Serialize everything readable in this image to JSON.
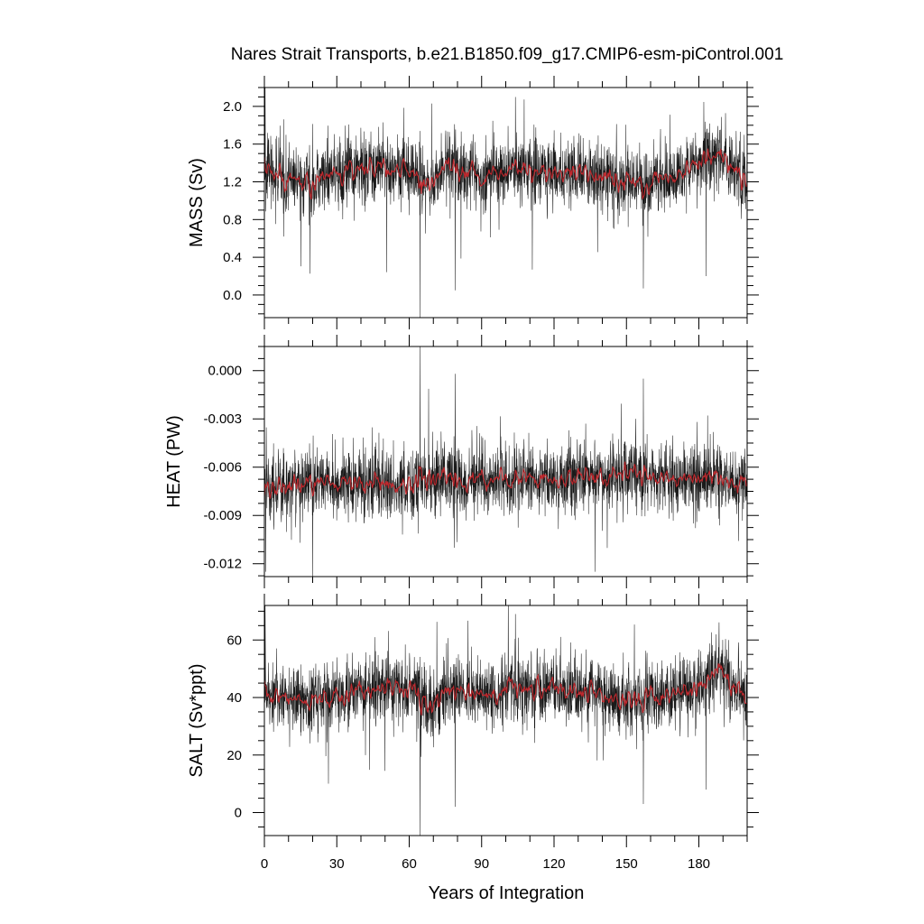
{
  "chart_data": {
    "title": "Nares Strait Transports, b.e21.B1850.f09_g17.CMIP6-esm-piControl.001",
    "xlabel": "Years of Integration",
    "xlim": [
      0,
      200
    ],
    "xticks": [
      0,
      30,
      60,
      90,
      120,
      150,
      180
    ],
    "xtick_labels": [
      "0",
      "30",
      "60",
      "90",
      "120",
      "150",
      "180"
    ],
    "panels": [
      {
        "type": "line",
        "ylabel": "MASS (Sv)",
        "ylim": [
          -0.24,
          2.2
        ],
        "yticks": [
          0.0,
          0.4,
          0.8,
          1.2,
          1.6,
          2.0
        ],
        "ytick_labels": [
          "0.0",
          "0.4",
          "0.8",
          "1.2",
          "1.6",
          "2.0"
        ],
        "mean": 1.28,
        "spikes": [
          [
            0.3,
            2.2
          ],
          [
            64.5,
            -0.24
          ],
          [
            79,
            0.05
          ],
          [
            104,
            2.1
          ],
          [
            111,
            0.27
          ],
          [
            157,
            0.07
          ],
          [
            183,
            0.2
          ]
        ],
        "smooth_anchors": [
          [
            0,
            1.3
          ],
          [
            10,
            1.25
          ],
          [
            20,
            1.2
          ],
          [
            30,
            1.28
          ],
          [
            45,
            1.35
          ],
          [
            60,
            1.3
          ],
          [
            70,
            1.15
          ],
          [
            75,
            1.4
          ],
          [
            90,
            1.25
          ],
          [
            105,
            1.35
          ],
          [
            120,
            1.3
          ],
          [
            135,
            1.3
          ],
          [
            150,
            1.18
          ],
          [
            170,
            1.25
          ],
          [
            182,
            1.45
          ],
          [
            188,
            1.55
          ],
          [
            193,
            1.4
          ],
          [
            200,
            1.15
          ]
        ],
        "series": [
          {
            "name": "",
            "color": "#000000",
            "kind": "monthly"
          },
          {
            "name": "",
            "color": "#c0282d",
            "kind": "annual"
          }
        ]
      },
      {
        "type": "line",
        "ylabel": "HEAT (PW)",
        "ylim": [
          -0.0128,
          0.0015
        ],
        "yticks": [
          -0.012,
          -0.009,
          -0.006,
          -0.003,
          0.0
        ],
        "ytick_labels": [
          "-0.012",
          "-0.009",
          "-0.006",
          "-0.003",
          "0.000"
        ],
        "mean": -0.0068,
        "spikes": [
          [
            0.5,
            -0.0125
          ],
          [
            64.5,
            0.0015
          ],
          [
            79,
            -0.0002
          ],
          [
            137,
            -0.0125
          ],
          [
            157,
            -0.0005
          ],
          [
            20,
            -0.0128
          ]
        ],
        "smooth_anchors": [
          [
            0,
            -0.0072
          ],
          [
            30,
            -0.0068
          ],
          [
            60,
            -0.007
          ],
          [
            90,
            -0.0068
          ],
          [
            120,
            -0.0067
          ],
          [
            150,
            -0.0066
          ],
          [
            180,
            -0.0068
          ],
          [
            200,
            -0.0068
          ]
        ],
        "series": [
          {
            "name": "",
            "color": "#000000",
            "kind": "monthly"
          },
          {
            "name": "",
            "color": "#c0282d",
            "kind": "annual"
          }
        ]
      },
      {
        "type": "line",
        "ylabel": "SALT (Sv*ppt)",
        "ylim": [
          -8,
          72
        ],
        "yticks": [
          0,
          20,
          40,
          60
        ],
        "ytick_labels": [
          "0",
          "20",
          "40",
          "60"
        ],
        "mean": 42,
        "spikes": [
          [
            0.3,
            72
          ],
          [
            64.5,
            -8
          ],
          [
            79,
            2
          ],
          [
            104,
            69
          ],
          [
            157,
            3
          ],
          [
            183,
            8
          ]
        ],
        "smooth_anchors": [
          [
            0,
            42
          ],
          [
            10,
            40
          ],
          [
            20,
            39
          ],
          [
            30,
            41
          ],
          [
            45,
            44
          ],
          [
            60,
            43
          ],
          [
            70,
            37
          ],
          [
            75,
            44
          ],
          [
            90,
            41
          ],
          [
            105,
            44
          ],
          [
            120,
            42
          ],
          [
            135,
            42
          ],
          [
            150,
            38
          ],
          [
            170,
            41
          ],
          [
            182,
            46
          ],
          [
            188,
            50
          ],
          [
            193,
            46
          ],
          [
            200,
            38
          ]
        ],
        "series": [
          {
            "name": "",
            "color": "#000000",
            "kind": "monthly"
          },
          {
            "name": "",
            "color": "#c0282d",
            "kind": "annual"
          }
        ]
      }
    ]
  }
}
